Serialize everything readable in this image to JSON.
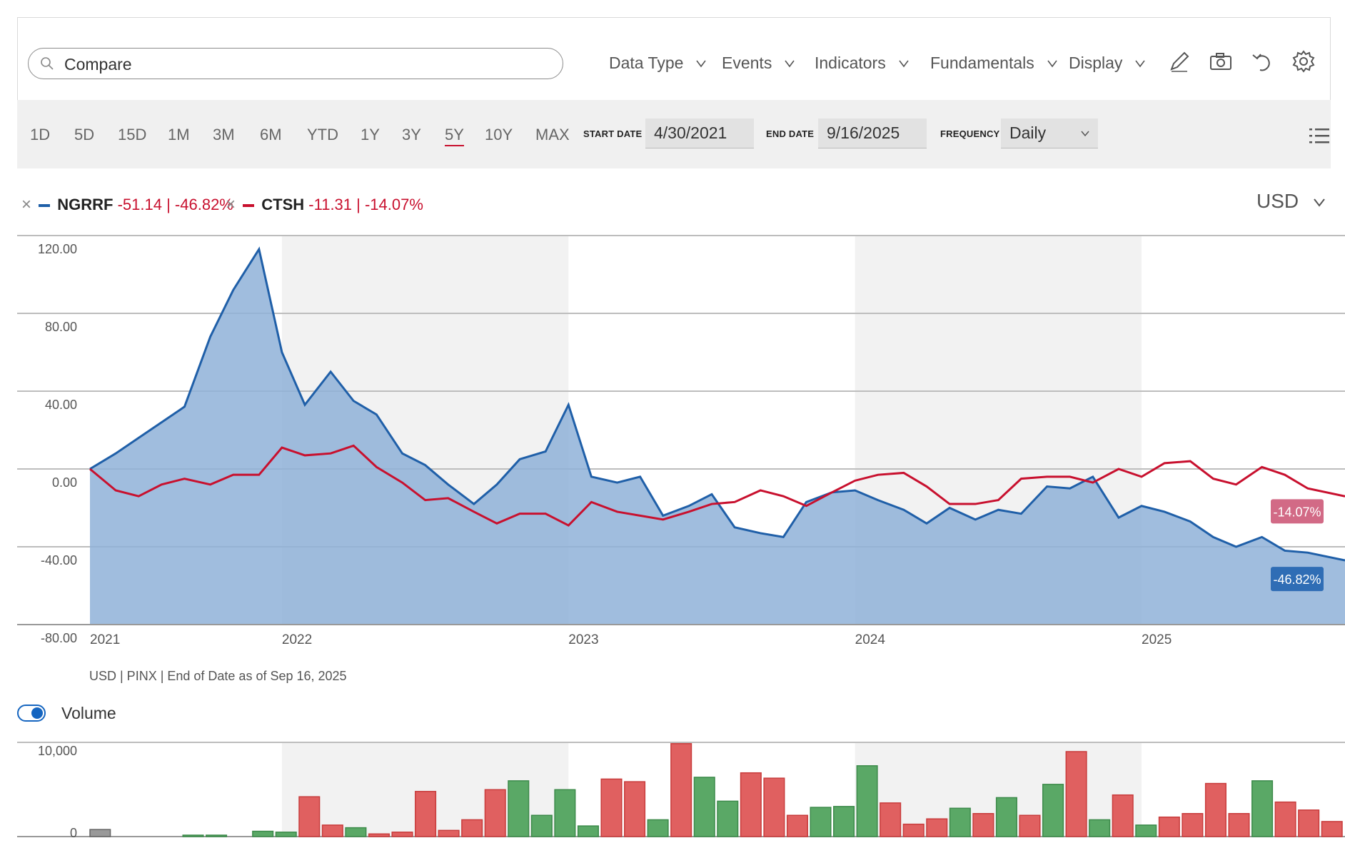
{
  "search": {
    "placeholder": "Compare"
  },
  "menus": [
    {
      "label": "Data Type"
    },
    {
      "label": "Events"
    },
    {
      "label": "Indicators"
    },
    {
      "label": "Fundamentals"
    },
    {
      "label": "Display"
    }
  ],
  "tools": [
    "pencil-icon",
    "camera-icon",
    "undo-icon",
    "gear-icon"
  ],
  "ranges": [
    "1D",
    "5D",
    "15D",
    "1M",
    "3M",
    "6M",
    "YTD",
    "1Y",
    "3Y",
    "5Y",
    "10Y",
    "MAX"
  ],
  "active_range": "5Y",
  "filters": {
    "start_label": "START DATE",
    "start_value": "4/30/2021",
    "end_label": "END DATE",
    "end_value": "9/16/2025",
    "freq_label": "FREQUENCY",
    "freq_value": "Daily"
  },
  "legend": [
    {
      "symbol": "NGRRF",
      "change": "-51.14 | -46.82%",
      "color": "#1f5fa8"
    },
    {
      "symbol": "CTSH",
      "change": "-11.31 | -14.07%",
      "color": "#c8102e"
    }
  ],
  "currency": "USD",
  "note": "USD | PINX | End of Date as of Sep 16, 2025",
  "volume_label": "Volume",
  "colors": {
    "ngrrf_line": "#1f5fa8",
    "ngrrf_fill": "#8fb2d8",
    "ctsh_line": "#c8102e",
    "vol_up": "#5aa866",
    "vol_down": "#e06060",
    "band": "#f2f2f2"
  },
  "chart_data": [
    {
      "type": "area",
      "ylim": [
        -80,
        120
      ],
      "y_ticks": [
        "120.00",
        "80.00",
        "40.00",
        "0.00",
        "-40.00",
        "-80.00"
      ],
      "x_ticks": [
        "2021",
        "2022",
        "2023",
        "2024",
        "2025"
      ],
      "x_range": [
        2021.33,
        2025.71
      ],
      "shaded_years": [
        2022,
        2024
      ],
      "series": [
        {
          "name": "NGRRF",
          "end_label": "-46.82%",
          "x": [
            2021.33,
            2021.42,
            2021.5,
            2021.58,
            2021.66,
            2021.75,
            2021.83,
            2021.92,
            2022,
            2022.08,
            2022.17,
            2022.25,
            2022.33,
            2022.42,
            2022.5,
            2022.58,
            2022.67,
            2022.75,
            2022.83,
            2022.92,
            2023,
            2023.08,
            2023.17,
            2023.25,
            2023.33,
            2023.42,
            2023.5,
            2023.58,
            2023.67,
            2023.75,
            2023.83,
            2023.92,
            2024,
            2024.08,
            2024.17,
            2024.25,
            2024.33,
            2024.42,
            2024.5,
            2024.58,
            2024.67,
            2024.75,
            2024.83,
            2024.92,
            2025,
            2025.08,
            2025.17,
            2025.25,
            2025.33,
            2025.42,
            2025.5,
            2025.58,
            2025.71
          ],
          "values": [
            0,
            8,
            16,
            24,
            32,
            68,
            92,
            113,
            60,
            33,
            50,
            35,
            28,
            8,
            2,
            -8,
            -18,
            -8,
            5,
            9,
            33,
            -4,
            -7,
            -4,
            -24,
            -19,
            -13,
            -30,
            -33,
            -35,
            -17,
            -12,
            -11,
            -16,
            -21,
            -28,
            -20,
            -26,
            -21,
            -23,
            -9,
            -10,
            -4,
            -25,
            -19,
            -22,
            -27,
            -35,
            -40,
            -35,
            -42,
            -43,
            -47
          ]
        },
        {
          "name": "CTSH",
          "end_label": "-14.07%",
          "x": [
            2021.33,
            2021.42,
            2021.5,
            2021.58,
            2021.66,
            2021.75,
            2021.83,
            2021.92,
            2022,
            2022.08,
            2022.17,
            2022.25,
            2022.33,
            2022.42,
            2022.5,
            2022.58,
            2022.67,
            2022.75,
            2022.83,
            2022.92,
            2023,
            2023.08,
            2023.17,
            2023.25,
            2023.33,
            2023.42,
            2023.5,
            2023.58,
            2023.67,
            2023.75,
            2023.83,
            2023.92,
            2024,
            2024.08,
            2024.17,
            2024.25,
            2024.33,
            2024.42,
            2024.5,
            2024.58,
            2024.67,
            2024.75,
            2024.83,
            2024.92,
            2025,
            2025.08,
            2025.17,
            2025.25,
            2025.33,
            2025.42,
            2025.5,
            2025.58,
            2025.71
          ],
          "values": [
            0,
            -11,
            -14,
            -8,
            -5,
            -8,
            -3,
            -3,
            11,
            7,
            8,
            12,
            1,
            -7,
            -16,
            -15,
            -22,
            -28,
            -23,
            -23,
            -29,
            -17,
            -22,
            -24,
            -26,
            -22,
            -18,
            -17,
            -11,
            -14,
            -19,
            -12,
            -6,
            -3,
            -2,
            -9,
            -18,
            -18,
            -16,
            -5,
            -4,
            -4,
            -7,
            0,
            -4,
            3,
            4,
            -5,
            -8,
            1,
            -3,
            -10,
            -14.07
          ]
        }
      ]
    },
    {
      "type": "bar",
      "title": "Volume",
      "y_ticks": [
        "10,000",
        "0"
      ],
      "ylim": [
        0,
        10000
      ],
      "values": [
        800,
        0,
        0,
        0,
        100,
        100,
        0,
        600,
        500,
        4500,
        1300,
        1000,
        300,
        500,
        5100,
        700,
        1900,
        5300,
        6300,
        2400,
        5300,
        1200,
        6500,
        6200,
        1900,
        10500,
        6700,
        4000,
        7200,
        6600,
        2400,
        3300,
        3400,
        8000,
        3800,
        1400,
        2000,
        3200,
        2600,
        4400,
        2400,
        5900,
        9600,
        1900,
        4700,
        1300,
        2200,
        2600,
        6000,
        2600,
        6300,
        3900,
        3000,
        1700
      ],
      "direction": [
        "n",
        "n",
        "n",
        "n",
        "u",
        "u",
        "n",
        "u",
        "u",
        "d",
        "d",
        "u",
        "d",
        "d",
        "d",
        "d",
        "d",
        "d",
        "u",
        "u",
        "u",
        "u",
        "d",
        "d",
        "u",
        "d",
        "u",
        "u",
        "d",
        "d",
        "d",
        "u",
        "u",
        "u",
        "d",
        "d",
        "d",
        "u",
        "d",
        "u",
        "d",
        "u",
        "d",
        "u",
        "d",
        "u",
        "d",
        "d",
        "d",
        "d",
        "u",
        "d",
        "d",
        "d"
      ]
    }
  ]
}
